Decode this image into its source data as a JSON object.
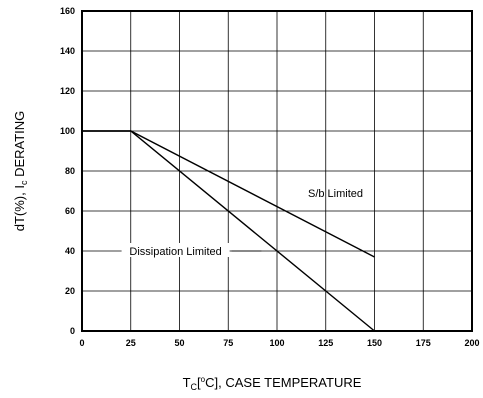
{
  "chart_data": {
    "type": "line",
    "title": "",
    "xlabel": {
      "main": "T",
      "sub": "C",
      "unit_prefix": "[",
      "unit_sup": "o",
      "unit_suffix": "C], CASE TEMPERATURE"
    },
    "ylabel": {
      "main": "dT(%), I",
      "sub": "c",
      "suffix": " DERATING"
    },
    "xlim": [
      0,
      200
    ],
    "ylim": [
      0,
      160
    ],
    "xticks": [
      "0",
      "25",
      "50",
      "75",
      "100",
      "125",
      "150",
      "175",
      "200"
    ],
    "yticks": [
      "0",
      "20",
      "40",
      "60",
      "80",
      "100",
      "120",
      "140",
      "160"
    ],
    "grid": true,
    "series": [
      {
        "name": "S/b Limited",
        "x": [
          0,
          25,
          150
        ],
        "y": [
          100,
          100,
          37
        ]
      },
      {
        "name": "Dissipation Limited",
        "x": [
          0,
          25,
          150
        ],
        "y": [
          100,
          100,
          0
        ]
      }
    ],
    "annotations": [
      {
        "text": "S/b Limited",
        "series": 0
      },
      {
        "text": "Dissipation Limited",
        "series": 1
      }
    ]
  }
}
